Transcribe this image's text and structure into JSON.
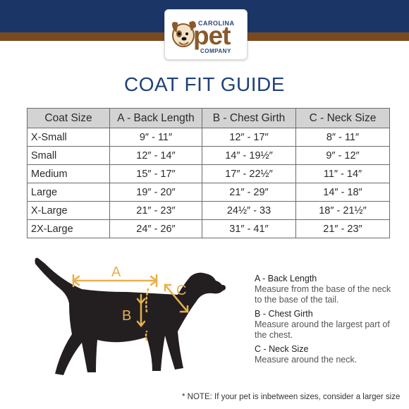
{
  "brand": {
    "top": "CAROLINA",
    "middle": "pet",
    "bottom": "COMPANY"
  },
  "title": "COAT FIT GUIDE",
  "table": {
    "headers": [
      "Coat Size",
      "A - Back Length",
      "B - Chest Girth",
      "C - Neck Size"
    ],
    "rows": [
      [
        "X-Small",
        "9″ - 11″",
        "12″ - 17″",
        "8″ - 11″"
      ],
      [
        "Small",
        "12″ - 14″",
        "14″ - 19½″",
        "9″ - 12″"
      ],
      [
        "Medium",
        "15″ - 17″",
        "17″ - 22½″",
        "11″ - 14″"
      ],
      [
        "Large",
        "19″ - 20″",
        "21″ - 29″",
        "14″ - 18″"
      ],
      [
        "X-Large",
        "21″ - 23″",
        "24½″ - 33",
        "18″ - 21½″"
      ],
      [
        "2X-Large",
        "24″ - 26″",
        "31″ - 41″",
        "21″ - 23″"
      ]
    ]
  },
  "diagram": {
    "labels": [
      "A",
      "B",
      "C"
    ],
    "accent_color": "#e8b04a",
    "dog_color": "#231f20"
  },
  "legend": [
    {
      "heading": "A - Back Length",
      "text": "Measure from the base of the neck to the base of the tail."
    },
    {
      "heading": "B - Chest Girth",
      "text": "Measure around the largest part of the chest."
    },
    {
      "heading": "C - Neck Size",
      "text": "Measure around the neck."
    }
  ],
  "note": "* NOTE: If your pet is inbetween sizes, consider a larger size",
  "colors": {
    "navy_band": "#1b3566",
    "brown_band": "#7a4a1f",
    "title": "#1f4177",
    "header_fill": "#d3d3d3"
  }
}
